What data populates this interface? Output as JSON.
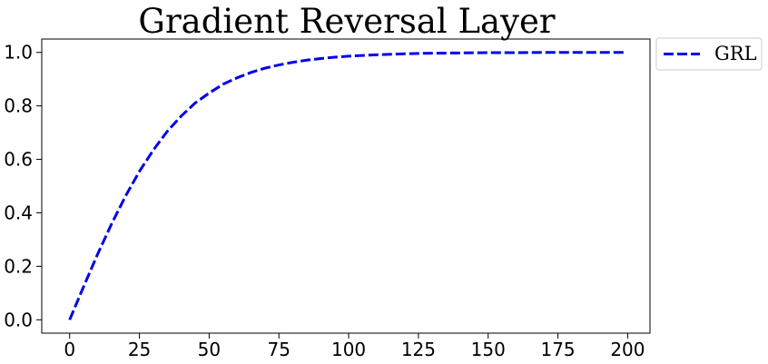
{
  "chart_data": {
    "type": "line",
    "title": "Gradient Reversal Layer",
    "xlabel": "",
    "ylabel": "",
    "xlim": [
      -10,
      208
    ],
    "ylim": [
      -0.05,
      1.05
    ],
    "x_ticks": [
      0,
      25,
      50,
      75,
      100,
      125,
      150,
      175,
      200
    ],
    "x_tick_labels": [
      "0",
      "25",
      "50",
      "75",
      "100",
      "125",
      "150",
      "175",
      "200"
    ],
    "y_ticks": [
      0.0,
      0.2,
      0.4,
      0.6,
      0.8,
      1.0
    ],
    "y_tick_labels": [
      "0.0",
      "0.2",
      "0.4",
      "0.6",
      "0.8",
      "1.0"
    ],
    "grid": false,
    "legend_position": "outside-top-right",
    "series": [
      {
        "name": "GRL",
        "color": "#0000ee",
        "line_style": "dashed",
        "x": [
          0,
          5,
          10,
          15,
          20,
          25,
          30,
          35,
          40,
          45,
          50,
          55,
          60,
          65,
          70,
          75,
          80,
          85,
          90,
          95,
          100,
          110,
          120,
          130,
          140,
          150,
          160,
          170,
          180,
          190,
          199
        ],
        "y": [
          0.0,
          0.124,
          0.245,
          0.358,
          0.462,
          0.555,
          0.635,
          0.705,
          0.762,
          0.811,
          0.848,
          0.881,
          0.905,
          0.925,
          0.941,
          0.953,
          0.963,
          0.971,
          0.977,
          0.982,
          0.986,
          0.991,
          0.995,
          0.997,
          0.998,
          0.999,
          0.999,
          1.0,
          1.0,
          1.0,
          1.0
        ]
      }
    ]
  }
}
